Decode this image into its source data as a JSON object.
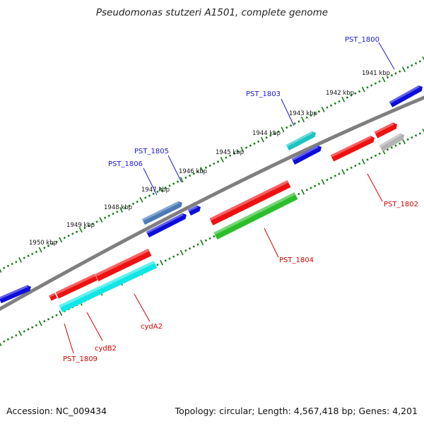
{
  "title": "Pseudomonas stutzeri A1501, complete genome",
  "footer": {
    "accession": "Accession: NC_009434",
    "summary": "Topology: circular; Length: 4,567,418 bp; Genes: 4,201"
  },
  "colors": {
    "backbone": "#808080",
    "ticks": "#137a13",
    "label_blue": "#1a1ad6",
    "label_red": "#d40000",
    "gene_blue": "#0d0ddc",
    "gene_red": "#ee1111",
    "gene_cyan": "#11e6e6",
    "gene_teal": "#1cc4c4",
    "gene_green": "#2bbf2b",
    "gene_steel": "#4a7bb5",
    "gene_gray": "#b3b3b3"
  },
  "scale_labels": [
    "1941 kbp",
    "1942 kbp",
    "1943 kbp",
    "1944 kbp",
    "1945 kbp",
    "1946 kbp",
    "1947 kbp",
    "1948 kbp",
    "1949 kbp",
    "1950 kbp"
  ],
  "gene_labels": {
    "pst1800": "PST_1800",
    "pst1803": "PST_1803",
    "pst1805": "PST_1805",
    "pst1806": "PST_1806",
    "pst1802": "PST_1802",
    "pst1804": "PST_1804",
    "cydA2": "cydA2",
    "cydB2": "cydB2",
    "pst1809": "PST_1809"
  }
}
